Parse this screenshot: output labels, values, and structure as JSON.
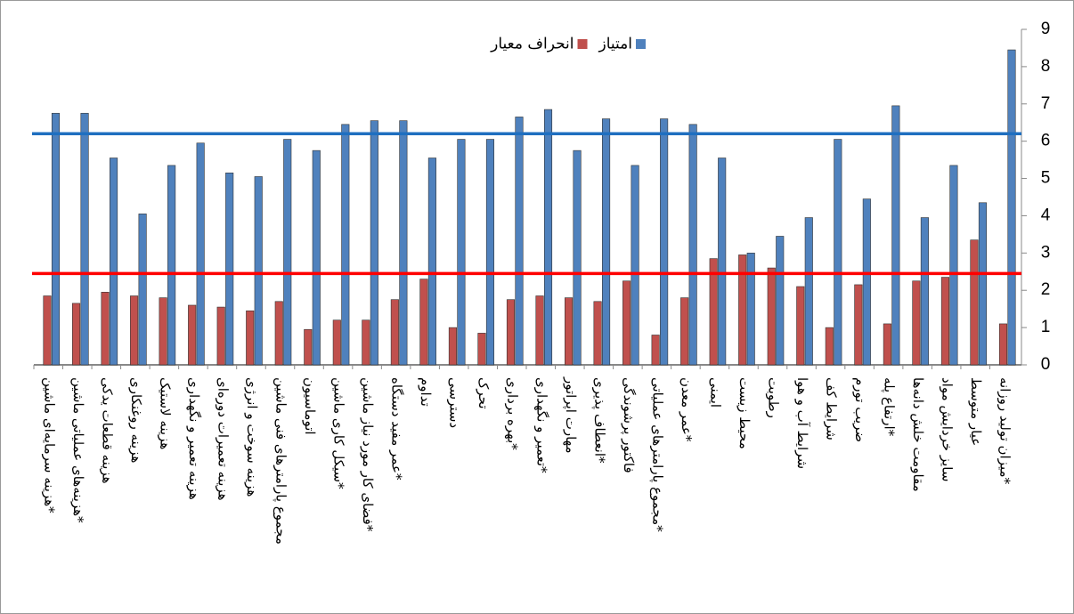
{
  "chart_data": {
    "type": "bar",
    "categories": [
      "هزینه سرمایه‌ای ماشین*",
      "هزینه‌های عملیاتی ماشین*",
      "هزینه قطعات یدکی",
      "هزینه روغنکاری",
      "هزینه لاستیک",
      "هزینه تعمیر و نگهداری",
      "هزینه تعمیرات دوره‌ای",
      "هزینه سوخت و انرژی",
      "مجموع پارامترهای فنی ماشین",
      "اتوماسیون",
      "سیکل کاری ماشین*",
      "فضای کار مورد نیاز ماشین*",
      "عمر مفید دستگاه*",
      "تداوم",
      "دسترسی",
      "تحرک",
      "بهره برداری*",
      "تعمیر و نگهداری*",
      "مهارت اپراتور",
      "انعطاف پذیری*",
      "فاکتور پرشوندگی",
      "مجموع پارامترهای عملیاتی*",
      "عمر معدن*",
      "ایمنی",
      "محیط زیست",
      "رطوبت",
      "شرایط آب و هوا",
      "شرایط کف",
      "ضریب تورم",
      "ارتفاع پله*",
      "مقاومت خلش دانه‌ها",
      "سایز خردایش مواد",
      "عیار متوسط",
      "میزان تولید روزانه*"
    ],
    "series": [
      {
        "name": "انحراف معیار",
        "color": "#c0504d",
        "values": [
          1.85,
          1.65,
          1.95,
          1.85,
          1.8,
          1.6,
          1.55,
          1.45,
          1.7,
          0.95,
          1.2,
          1.2,
          1.75,
          2.3,
          1.0,
          0.85,
          1.75,
          1.85,
          1.8,
          1.7,
          2.25,
          0.8,
          1.8,
          2.85,
          2.95,
          2.6,
          2.1,
          1.0,
          2.15,
          1.1,
          2.25,
          2.35,
          3.35,
          1.1
        ]
      },
      {
        "name": "امتیاز",
        "color": "#4f81bd",
        "values": [
          6.75,
          6.75,
          5.55,
          4.05,
          5.35,
          5.95,
          5.15,
          5.05,
          6.05,
          5.75,
          6.45,
          6.55,
          6.55,
          5.55,
          6.05,
          6.05,
          6.65,
          6.85,
          5.75,
          6.6,
          5.35,
          6.6,
          6.45,
          5.55,
          3.0,
          3.45,
          3.95,
          6.05,
          4.45,
          6.95,
          3.95,
          5.35,
          4.35,
          8.45
        ]
      }
    ],
    "reference_lines": [
      {
        "value": 6.2,
        "color": "#1f6fc0"
      },
      {
        "value": 2.45,
        "color": "#ff0000"
      }
    ],
    "ylim": [
      0,
      9
    ],
    "yticks": [
      0,
      1,
      2,
      3,
      4,
      5,
      6,
      7,
      8,
      9
    ],
    "y_axis_side": "right",
    "grid": false
  }
}
